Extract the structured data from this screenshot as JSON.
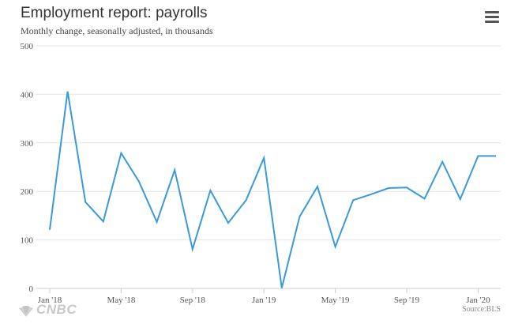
{
  "header": {
    "title": "Employment report: payrolls",
    "subtitle": "Monthly change, seasonally adjusted, in thousands"
  },
  "menu": {
    "icon": "hamburger-menu-icon"
  },
  "footer": {
    "logo_text": "CNBC",
    "source": "Source:BLS"
  },
  "colors": {
    "line": "#3a9ad9",
    "grid": "#e6e6e6",
    "axis": "#cccccc"
  },
  "chart_data": {
    "type": "line",
    "title": "Employment report: payrolls",
    "subtitle": "Monthly change, seasonally adjusted, in thousands",
    "xlabel": "",
    "ylabel": "",
    "ylim": [
      0,
      500
    ],
    "yticks": [
      "0",
      "100",
      "200",
      "300",
      "400",
      "500"
    ],
    "xtick_labels": [
      "Jan '18",
      "May '18",
      "Sep '18",
      "Jan '19",
      "May '19",
      "Sep '19",
      "Jan '20"
    ],
    "xtick_indices": [
      0,
      4,
      8,
      12,
      16,
      20,
      24
    ],
    "x": [
      "Jan '18",
      "Feb '18",
      "Mar '18",
      "Apr '18",
      "May '18",
      "Jun '18",
      "Jul '18",
      "Aug '18",
      "Sep '18",
      "Oct '18",
      "Nov '18",
      "Dec '18",
      "Jan '19",
      "Feb '19",
      "Mar '19",
      "Apr '19",
      "May '19",
      "Jun '19",
      "Jul '19",
      "Aug '19",
      "Sep '19",
      "Oct '19",
      "Nov '19",
      "Dec '19",
      "Jan '20",
      "Feb '20"
    ],
    "series": [
      {
        "values": [
          121,
          406,
          178,
          138,
          279,
          220,
          137,
          244,
          81,
          202,
          135,
          182,
          269,
          1,
          148,
          210,
          86,
          182,
          194,
          207,
          208,
          185,
          261,
          184,
          273,
          273
        ]
      }
    ],
    "grid": true,
    "legend": "none"
  }
}
